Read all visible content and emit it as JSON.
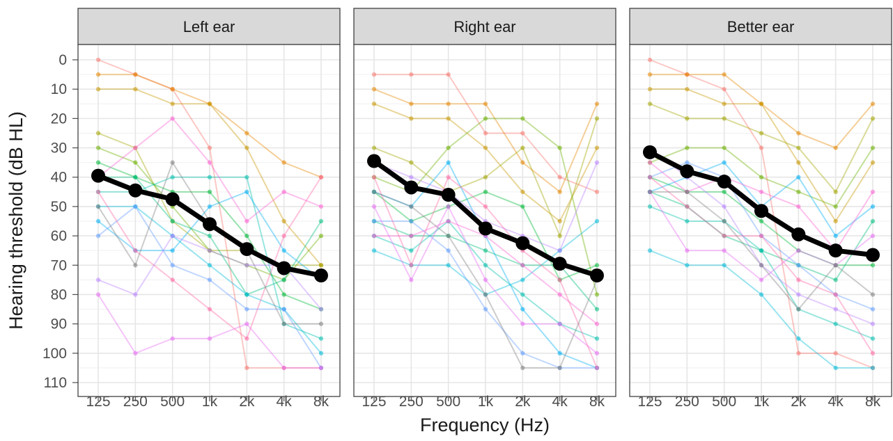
{
  "chart_data": {
    "type": "line",
    "xlabel": "Frequency (Hz)",
    "ylabel": "Hearing threshold (dB HL)",
    "categories": [
      "125",
      "250",
      "500",
      "1k",
      "2k",
      "4k",
      "8k"
    ],
    "yticks": [
      0,
      10,
      20,
      30,
      40,
      50,
      60,
      70,
      80,
      90,
      100,
      110
    ],
    "ylim": [
      0,
      110
    ],
    "y_reversed": true,
    "grid": true,
    "mean_color": "#000000",
    "individual_colors": [
      "#F8766D",
      "#E58700",
      "#C99800",
      "#A3A500",
      "#6BB100",
      "#00BA38",
      "#00BF7D",
      "#00C0AF",
      "#00BCD8",
      "#00B0F6",
      "#619CFF",
      "#B983FF",
      "#E76BF3",
      "#FD61D1",
      "#FF67A4",
      "#7F7F7F"
    ],
    "panels": [
      {
        "title": "Left ear",
        "mean": [
          39.5,
          44.5,
          47.5,
          56,
          64.5,
          71,
          73.5
        ],
        "individuals": [
          [
            0,
            5,
            10,
            30,
            105,
            105,
            105
          ],
          [
            5,
            5,
            10,
            15,
            25,
            35,
            40
          ],
          [
            10,
            10,
            15,
            15,
            30,
            55,
            70
          ],
          [
            25,
            30,
            55,
            65,
            65,
            70,
            70
          ],
          [
            30,
            35,
            50,
            65,
            70,
            75,
            60
          ],
          [
            35,
            40,
            45,
            45,
            60,
            80,
            85
          ],
          [
            40,
            40,
            55,
            60,
            80,
            75,
            55
          ],
          [
            45,
            45,
            40,
            40,
            40,
            90,
            95
          ],
          [
            50,
            50,
            60,
            70,
            80,
            85,
            100
          ],
          [
            55,
            65,
            65,
            50,
            45,
            65,
            75
          ],
          [
            60,
            50,
            70,
            75,
            85,
            85,
            105
          ],
          [
            75,
            80,
            60,
            65,
            70,
            70,
            85
          ],
          [
            80,
            100,
            95,
            95,
            90,
            105,
            105
          ],
          [
            40,
            30,
            20,
            35,
            55,
            45,
            50
          ],
          [
            45,
            65,
            75,
            85,
            95,
            60,
            40
          ],
          [
            50,
            70,
            35,
            55,
            65,
            90,
            90
          ]
        ]
      },
      {
        "title": "Right ear",
        "mean": [
          34.5,
          43.5,
          46,
          57.5,
          62.5,
          69.5,
          73.5
        ],
        "individuals": [
          [
            5,
            5,
            5,
            25,
            25,
            40,
            45
          ],
          [
            10,
            15,
            15,
            15,
            35,
            45,
            15
          ],
          [
            15,
            20,
            20,
            30,
            45,
            55,
            30
          ],
          [
            30,
            35,
            45,
            40,
            30,
            60,
            20
          ],
          [
            40,
            45,
            30,
            20,
            20,
            30,
            80
          ],
          [
            45,
            55,
            50,
            45,
            50,
            75,
            70
          ],
          [
            55,
            60,
            60,
            65,
            70,
            70,
            85
          ],
          [
            60,
            65,
            55,
            70,
            80,
            90,
            95
          ],
          [
            65,
            70,
            70,
            80,
            75,
            65,
            55
          ],
          [
            45,
            50,
            35,
            60,
            85,
            100,
            105
          ],
          [
            55,
            55,
            65,
            85,
            100,
            105,
            105
          ],
          [
            35,
            40,
            45,
            55,
            60,
            65,
            35
          ],
          [
            50,
            75,
            50,
            75,
            90,
            90,
            100
          ],
          [
            60,
            60,
            55,
            60,
            70,
            80,
            90
          ],
          [
            40,
            70,
            40,
            50,
            65,
            75,
            105
          ],
          [
            45,
            50,
            60,
            80,
            105,
            105,
            75
          ]
        ]
      },
      {
        "title": "Better ear",
        "mean": [
          31.5,
          38,
          41.5,
          51.5,
          59.5,
          65,
          66.5
        ],
        "individuals": [
          [
            0,
            5,
            10,
            30,
            100,
            100,
            105
          ],
          [
            5,
            5,
            5,
            15,
            25,
            30,
            15
          ],
          [
            10,
            10,
            15,
            15,
            35,
            55,
            35
          ],
          [
            15,
            20,
            20,
            25,
            30,
            45,
            20
          ],
          [
            35,
            30,
            30,
            40,
            45,
            50,
            30
          ],
          [
            40,
            45,
            45,
            55,
            65,
            70,
            70
          ],
          [
            45,
            50,
            60,
            65,
            70,
            75,
            55
          ],
          [
            50,
            55,
            55,
            65,
            85,
            90,
            95
          ],
          [
            65,
            70,
            70,
            80,
            95,
            105,
            105
          ],
          [
            45,
            40,
            35,
            50,
            40,
            60,
            50
          ],
          [
            40,
            35,
            40,
            60,
            70,
            80,
            85
          ],
          [
            30,
            40,
            50,
            70,
            80,
            85,
            90
          ],
          [
            45,
            65,
            65,
            75,
            65,
            70,
            60
          ],
          [
            35,
            45,
            40,
            45,
            50,
            65,
            45
          ],
          [
            40,
            50,
            60,
            60,
            75,
            80,
            100
          ],
          [
            45,
            45,
            55,
            70,
            85,
            70,
            80
          ]
        ]
      }
    ]
  }
}
